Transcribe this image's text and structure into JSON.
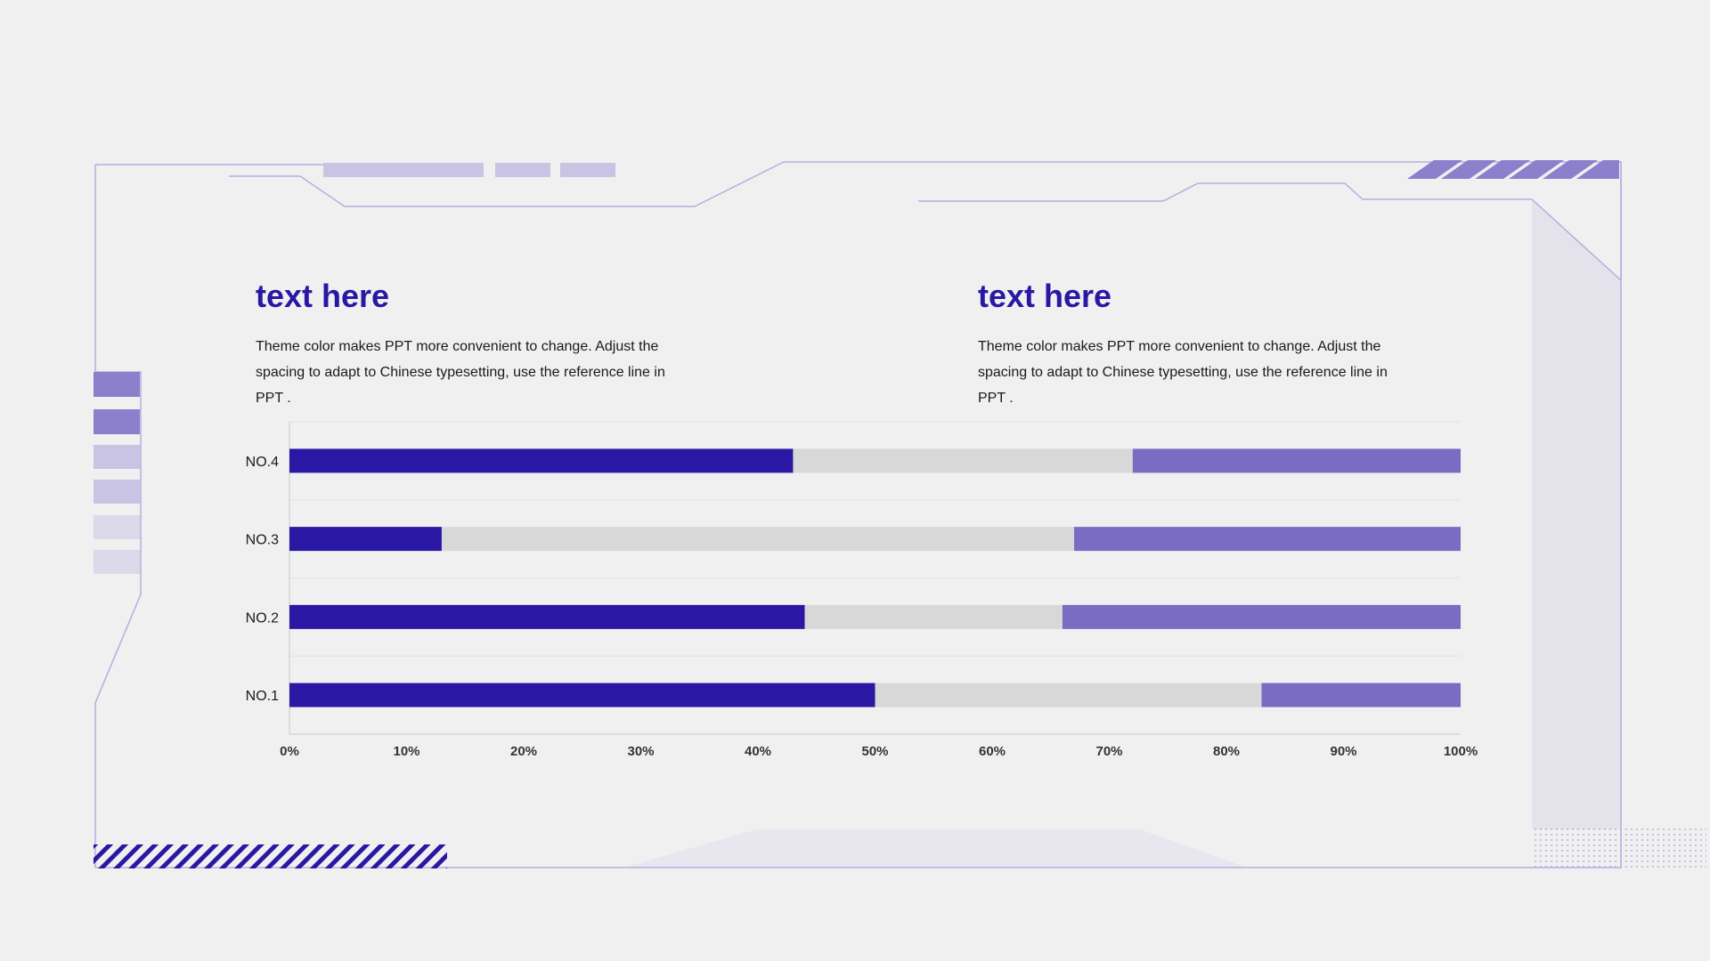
{
  "blocks": [
    {
      "title": "text here",
      "body": "Theme color makes PPT more convenient to change. Adjust the spacing to adapt to Chinese typesetting, use the reference line in PPT ."
    },
    {
      "title": "text here",
      "body": "Theme color makes PPT more convenient to change. Adjust the spacing to adapt to Chinese typesetting, use the reference line in PPT ."
    }
  ],
  "colors": {
    "accent_dark": "#2a17a3",
    "accent_mid": "#7b6cc3",
    "accent_light": "#c9c3e4",
    "neutral_bar": "#d8d8d8",
    "frame_line": "#b6addf"
  },
  "chart_data": {
    "type": "bar",
    "orientation": "horizontal",
    "stacked": "percent",
    "categories": [
      "NO.4",
      "NO.3",
      "NO.2",
      "NO.1"
    ],
    "series": [
      {
        "color": "#2a17a3",
        "values": [
          43,
          13,
          44,
          50
        ]
      },
      {
        "color": "#d8d8d8",
        "values": [
          29,
          54,
          22,
          33
        ]
      },
      {
        "color": "#7b6cc3",
        "values": [
          28,
          33,
          34,
          17
        ]
      }
    ],
    "xlim": [
      0,
      100
    ],
    "xticks": [
      "0%",
      "10%",
      "20%",
      "30%",
      "40%",
      "50%",
      "60%",
      "70%",
      "80%",
      "90%",
      "100%"
    ],
    "grid": true,
    "legend": "none"
  }
}
